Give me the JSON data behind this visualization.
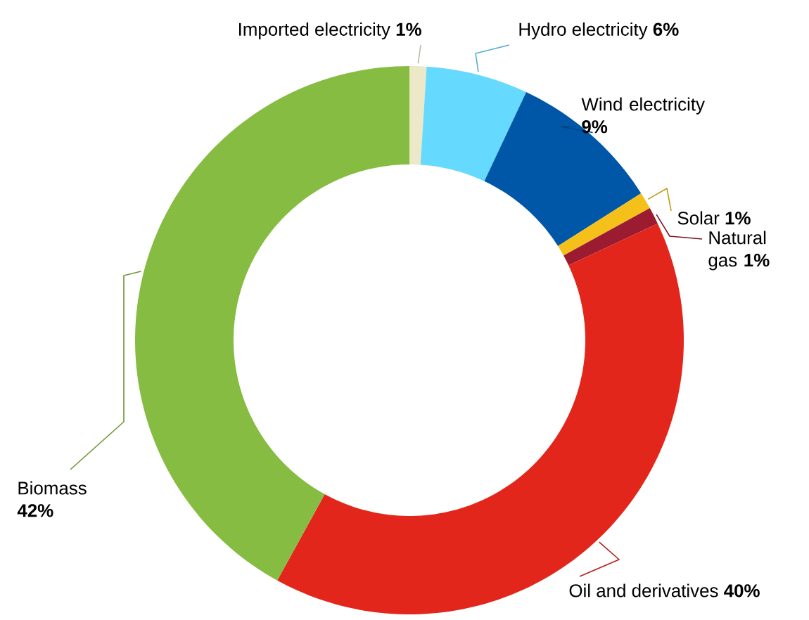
{
  "chart_data": {
    "type": "donut",
    "categories": [
      "Imported electricity",
      "Hydro electricity",
      "Wind electricity",
      "Solar",
      "Natural gas",
      "Oil and derivatives",
      "Biomass"
    ],
    "values": [
      1,
      6,
      9,
      1,
      1,
      40,
      42
    ],
    "value_labels": [
      "1%",
      "6%",
      "9%",
      "1%",
      "1%",
      "40%",
      "42%"
    ],
    "colors": [
      "#ece8c8",
      "#66d9ff",
      "#0057a8",
      "#f5c01a",
      "#9b1b30",
      "#e3261c",
      "#86bc42"
    ]
  }
}
